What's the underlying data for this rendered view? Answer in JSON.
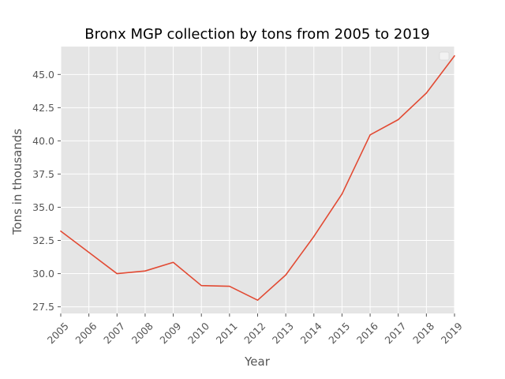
{
  "chart_data": {
    "type": "line",
    "title": "Bronx MGP collection by tons from 2005 to 2019",
    "xlabel": "Year",
    "ylabel": "Tons in thousands",
    "x": [
      2005,
      2006,
      2007,
      2008,
      2009,
      2010,
      2011,
      2012,
      2013,
      2014,
      2015,
      2016,
      2017,
      2018,
      2019
    ],
    "x_tick_labels": [
      "2005",
      "2006",
      "2007",
      "2008",
      "2009",
      "2010",
      "2011",
      "2012",
      "2013",
      "2014",
      "2015",
      "2016",
      "2017",
      "2018",
      "2019"
    ],
    "series": [
      {
        "values": [
          33.2,
          31.6,
          30.0,
          30.2,
          30.85,
          29.1,
          29.05,
          28.0,
          29.9,
          32.8,
          36.0,
          40.45,
          41.6,
          43.6,
          46.4
        ],
        "color": "#E24A33"
      }
    ],
    "xlim": [
      2005,
      2019
    ],
    "ylim": [
      27.0,
      47.1
    ],
    "y_ticks": [
      27.5,
      30.0,
      32.5,
      35.0,
      37.5,
      40.0,
      42.5,
      45.0
    ],
    "y_tick_labels": [
      "27.5",
      "30.0",
      "32.5",
      "35.0",
      "37.5",
      "40.0",
      "42.5",
      "45.0"
    ],
    "grid": true,
    "legend": "top-right",
    "style": {
      "background": "#E5E5E5",
      "grid_color": "#FFFFFF"
    }
  }
}
